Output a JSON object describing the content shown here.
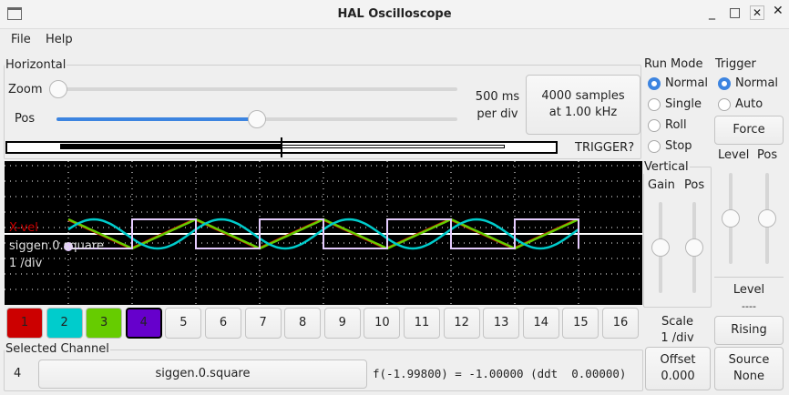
{
  "window": {
    "title": "HAL Oscilloscope"
  },
  "menu": [
    "File",
    "Help"
  ],
  "horizontal": {
    "label": "Horizontal",
    "zoom_label": "Zoom",
    "pos_label": "Pos",
    "rate_line1": "500 ms",
    "rate_line2": "per div",
    "samples_line1": "4000 samples",
    "samples_line2": "at 1.00 kHz",
    "zoom_value": 0,
    "pos_value": 0.5,
    "trigger_status": "TRIGGER?"
  },
  "run_mode": {
    "label": "Run Mode",
    "options": [
      "Normal",
      "Single",
      "Roll",
      "Stop"
    ],
    "selected": "Normal"
  },
  "trigger": {
    "label": "Trigger",
    "options": [
      "Normal",
      "Auto"
    ],
    "selected": "Normal",
    "force": "Force",
    "level_label": "Level",
    "pos_label": "Pos",
    "level_title": "Level",
    "level_value": "----",
    "edge": "Rising",
    "source_label": "Source",
    "source_value": "None"
  },
  "vertical": {
    "label": "Vertical",
    "gain_label": "Gain",
    "pos_label": "Pos",
    "scale_label": "Scale",
    "scale_value": "1 /div",
    "offset_label": "Offset",
    "offset_value": "0.000"
  },
  "scope": {
    "labels": [
      {
        "text": "X-vel",
        "color": "#cc0000"
      },
      {
        "text": "siggen.0.square",
        "color": "#e0e0e0"
      },
      {
        "text": "1 /div",
        "color": "#e0e0e0"
      }
    ]
  },
  "channels": [
    {
      "n": "1",
      "color": "#cc0000"
    },
    {
      "n": "2",
      "color": "#00cccc"
    },
    {
      "n": "3",
      "color": "#66cc00"
    },
    {
      "n": "4",
      "color": "#6600cc"
    },
    {
      "n": "5"
    },
    {
      "n": "6"
    },
    {
      "n": "7"
    },
    {
      "n": "8"
    },
    {
      "n": "9"
    },
    {
      "n": "10"
    },
    {
      "n": "11"
    },
    {
      "n": "12"
    },
    {
      "n": "13"
    },
    {
      "n": "14"
    },
    {
      "n": "15"
    },
    {
      "n": "16"
    }
  ],
  "selected_channel": {
    "label": "Selected Channel",
    "number": "4",
    "name": "siggen.0.square",
    "readout": "f(-1.99800) = -1.00000 (ddt  0.00000)"
  }
}
